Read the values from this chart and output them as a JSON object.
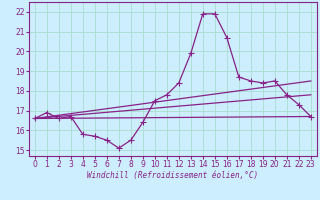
{
  "bg_color": "#cceeff",
  "line_color": "#882288",
  "grid_color": "#aaddcc",
  "xlim": [
    -0.5,
    23.5
  ],
  "ylim": [
    14.7,
    22.5
  ],
  "yticks": [
    15,
    16,
    17,
    18,
    19,
    20,
    21,
    22
  ],
  "xticks": [
    0,
    1,
    2,
    3,
    4,
    5,
    6,
    7,
    8,
    9,
    10,
    11,
    12,
    13,
    14,
    15,
    16,
    17,
    18,
    19,
    20,
    21,
    22,
    23
  ],
  "main_x": [
    0,
    1,
    2,
    3,
    4,
    5,
    6,
    7,
    8,
    9,
    10,
    11,
    12,
    13,
    14,
    15,
    16,
    17,
    18,
    19,
    20,
    21,
    22,
    23
  ],
  "main_y": [
    16.6,
    16.9,
    16.6,
    16.7,
    15.8,
    15.7,
    15.5,
    15.1,
    15.5,
    16.4,
    17.5,
    17.8,
    18.4,
    19.9,
    21.9,
    21.9,
    20.7,
    18.7,
    18.5,
    18.4,
    18.5,
    17.8,
    17.3,
    16.7
  ],
  "trend1_x": [
    0,
    23
  ],
  "trend1_y": [
    16.6,
    16.7
  ],
  "trend2_x": [
    0,
    23
  ],
  "trend2_y": [
    16.6,
    17.8
  ],
  "trend3_x": [
    0,
    23
  ],
  "trend3_y": [
    16.6,
    18.5
  ],
  "xlabel": "Windchill (Refroidissement éolien,°C)",
  "marker_size": 2.5,
  "line_width": 0.9,
  "tick_fontsize": 5.5,
  "xlabel_fontsize": 5.5
}
